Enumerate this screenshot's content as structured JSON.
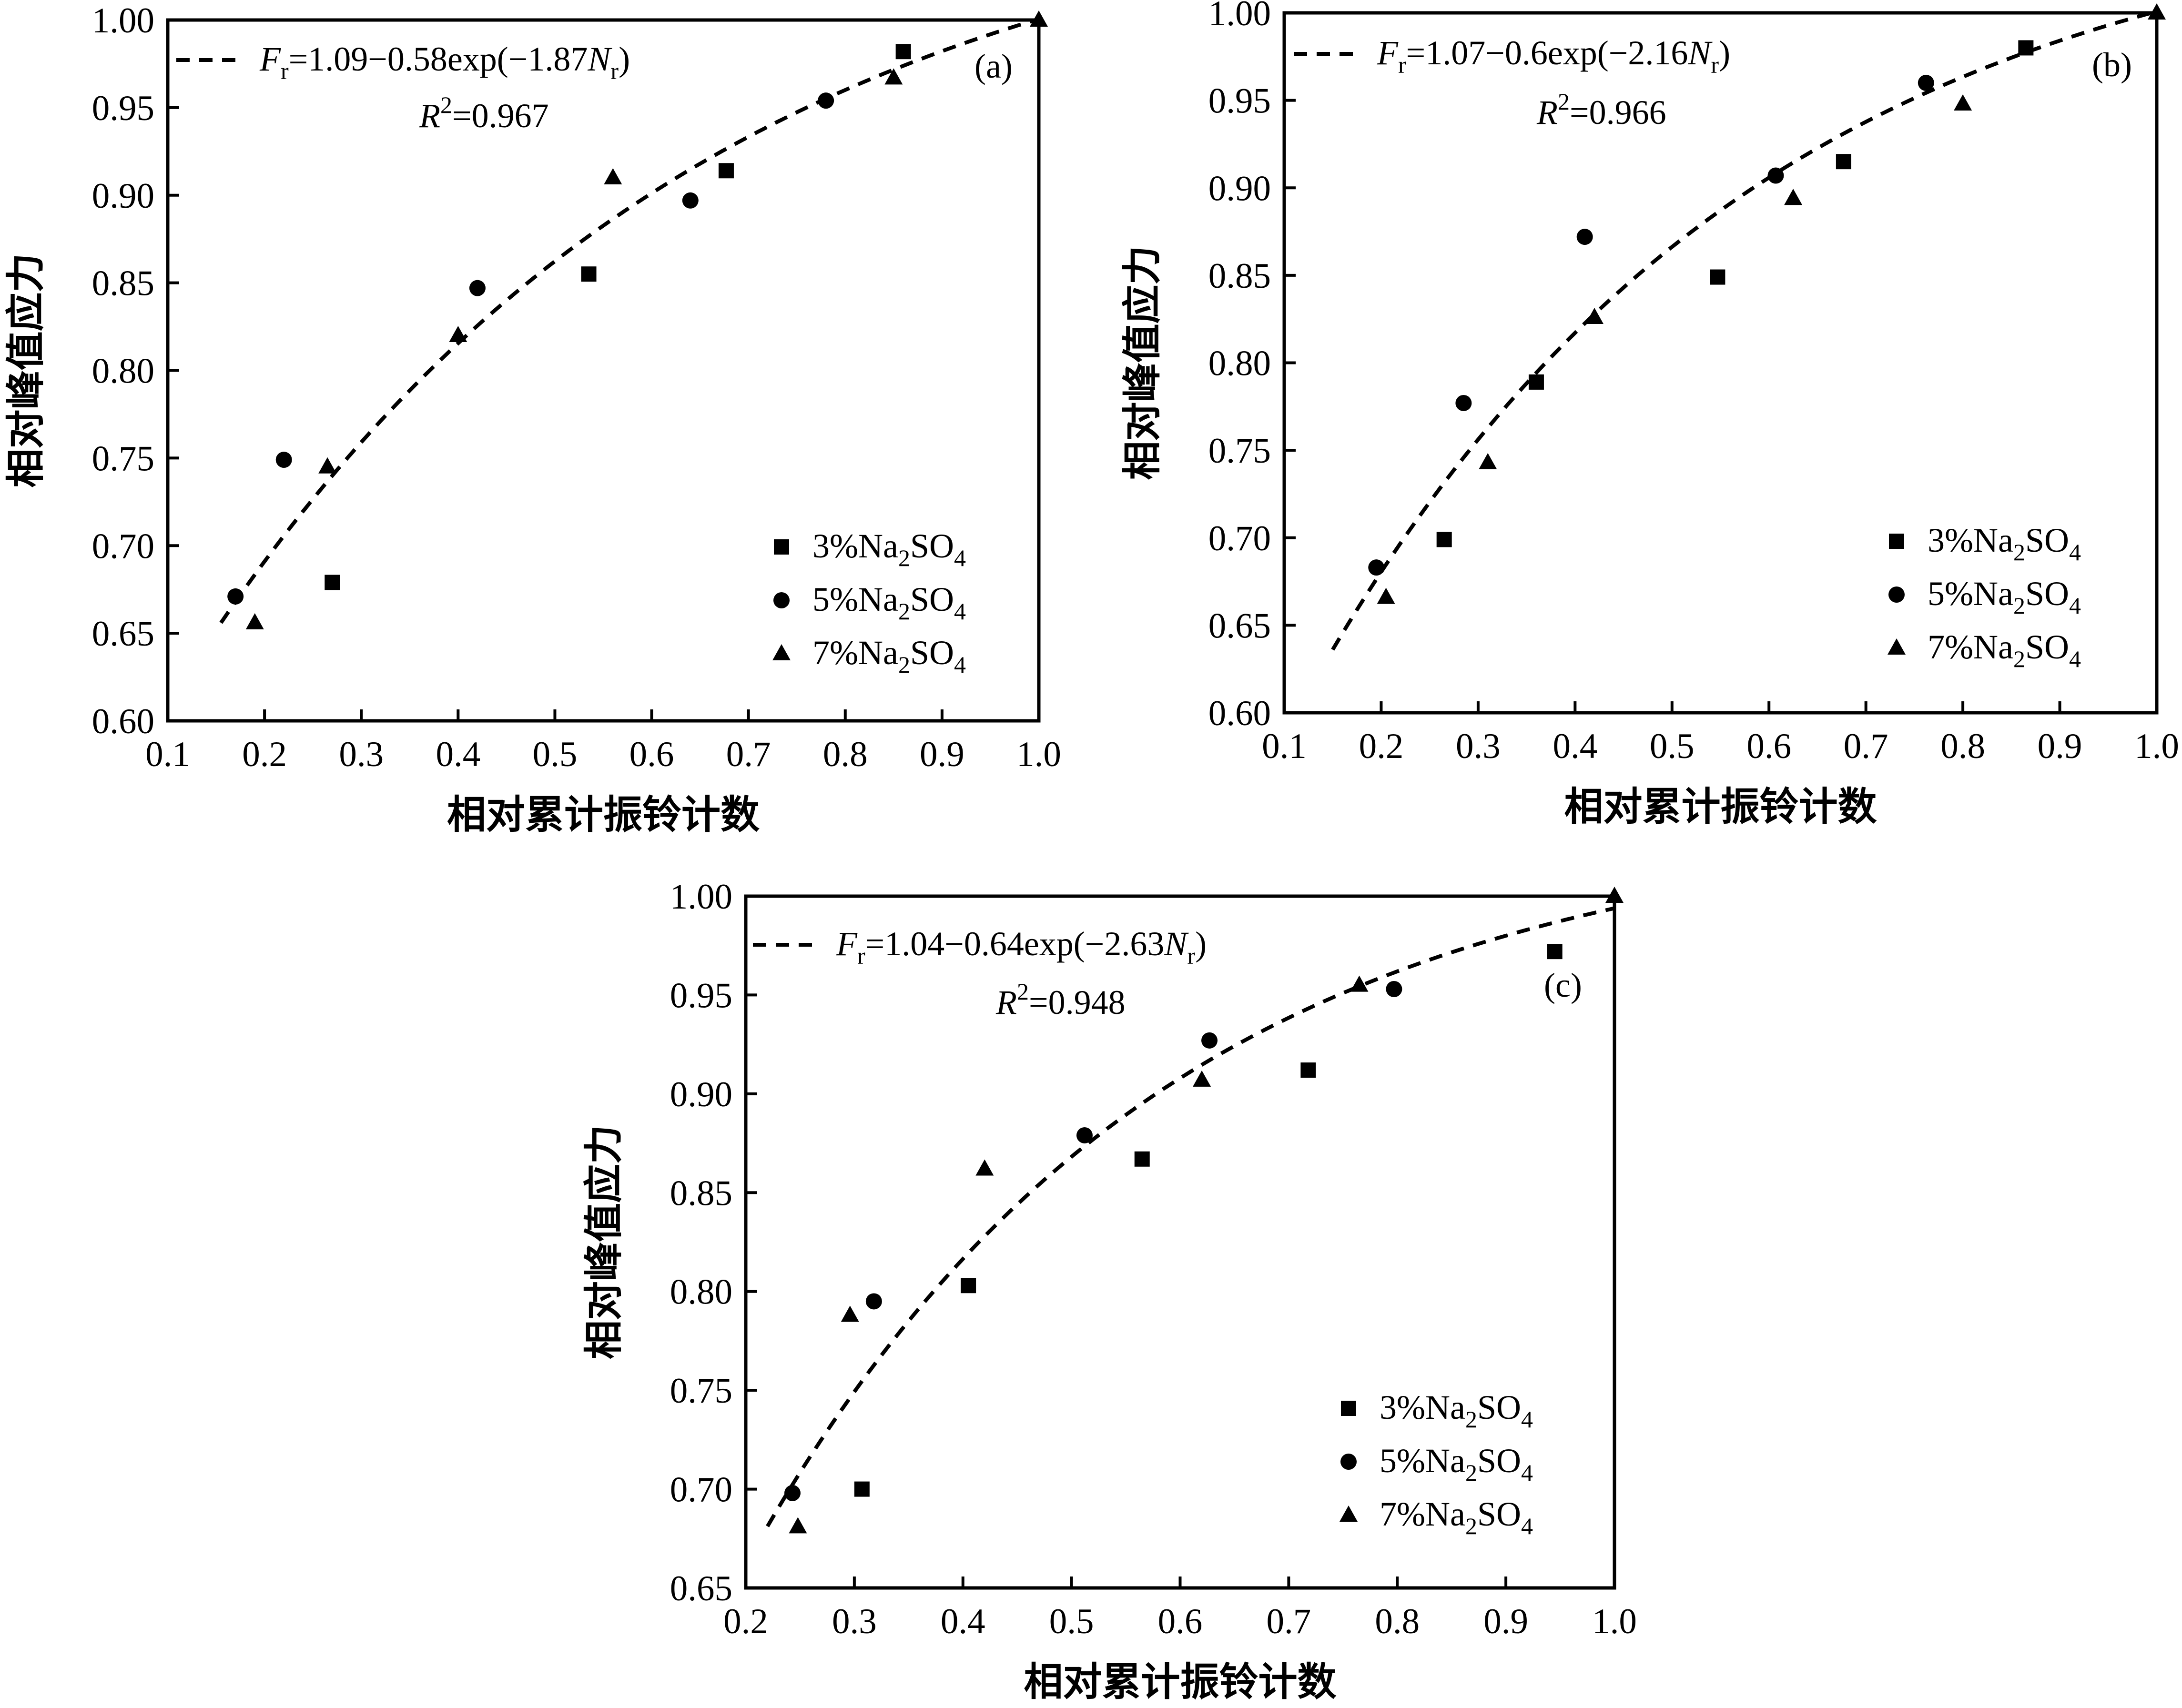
{
  "chart_data": [
    {
      "type": "scatter",
      "panel_label": "(a)",
      "xlabel": "相对累计振铃计数",
      "ylabel": "相对峰值应力",
      "xlim": [
        0.1,
        1.0
      ],
      "ylim": [
        0.6,
        1.0
      ],
      "xticks": [
        "0.1",
        "0.2",
        "0.3",
        "0.4",
        "0.5",
        "0.6",
        "0.7",
        "0.8",
        "0.9",
        "1.0"
      ],
      "yticks": [
        "0.60",
        "0.65",
        "0.70",
        "0.75",
        "0.80",
        "0.85",
        "0.90",
        "0.95",
        "1.00"
      ],
      "fit": {
        "a": 1.09,
        "b": 0.58,
        "c": 1.87,
        "x_range": [
          0.155,
          1.0
        ]
      },
      "equation": {
        "F": "F",
        "r1": "r",
        "body": "=1.09−0.58exp(−1.87",
        "N": "N",
        "r2": "r",
        "close": ")"
      },
      "r2": {
        "R": "R",
        "sup": "2",
        "value": "=0.967"
      },
      "series": [
        {
          "name": "3%Na2SO4",
          "marker": "square",
          "points": [
            [
              0.27,
              0.679
            ],
            [
              0.535,
              0.855
            ],
            [
              0.677,
              0.914
            ],
            [
              0.86,
              0.982
            ]
          ]
        },
        {
          "name": "5%Na2SO4",
          "marker": "circle",
          "points": [
            [
              0.17,
              0.671
            ],
            [
              0.22,
              0.749
            ],
            [
              0.42,
              0.847
            ],
            [
              0.64,
              0.897
            ],
            [
              0.78,
              0.954
            ]
          ]
        },
        {
          "name": "7%Na2SO4",
          "marker": "triangle",
          "points": [
            [
              0.19,
              0.656
            ],
            [
              0.265,
              0.745
            ],
            [
              0.4,
              0.82
            ],
            [
              0.56,
              0.91
            ],
            [
              0.85,
              0.967
            ],
            [
              1.0,
              1.0
            ]
          ]
        }
      ]
    },
    {
      "type": "scatter",
      "panel_label": "(b)",
      "xlabel": "相对累计振铃计数",
      "ylabel": "相对峰值应力",
      "xlim": [
        0.1,
        1.0
      ],
      "ylim": [
        0.6,
        1.0
      ],
      "xticks": [
        "0.1",
        "0.2",
        "0.3",
        "0.4",
        "0.5",
        "0.6",
        "0.7",
        "0.8",
        "0.9",
        "1.0"
      ],
      "yticks": [
        "0.60",
        "0.65",
        "0.70",
        "0.75",
        "0.80",
        "0.85",
        "0.90",
        "0.95",
        "1.00"
      ],
      "fit": {
        "a": 1.07,
        "b": 0.6,
        "c": 2.16,
        "x_range": [
          0.15,
          1.0
        ]
      },
      "equation": {
        "F": "F",
        "r1": "r",
        "body": "=1.07−0.6exp(−2.16",
        "N": "N",
        "r2": "r",
        "close": ")"
      },
      "r2": {
        "R": "R",
        "sup": "2",
        "value": "=0.966"
      },
      "series": [
        {
          "name": "3%Na2SO4",
          "marker": "square",
          "points": [
            [
              0.265,
              0.699
            ],
            [
              0.36,
              0.789
            ],
            [
              0.547,
              0.849
            ],
            [
              0.677,
              0.915
            ],
            [
              0.865,
              0.98
            ]
          ]
        },
        {
          "name": "5%Na2SO4",
          "marker": "circle",
          "points": [
            [
              0.195,
              0.683
            ],
            [
              0.285,
              0.777
            ],
            [
              0.41,
              0.872
            ],
            [
              0.607,
              0.907
            ],
            [
              0.762,
              0.96
            ]
          ]
        },
        {
          "name": "7%Na2SO4",
          "marker": "triangle",
          "points": [
            [
              0.205,
              0.666
            ],
            [
              0.31,
              0.743
            ],
            [
              0.42,
              0.826
            ],
            [
              0.625,
              0.894
            ],
            [
              0.8,
              0.948
            ],
            [
              1.0,
              1.0
            ]
          ]
        }
      ]
    },
    {
      "type": "scatter",
      "panel_label": "(c)",
      "xlabel": "相对累计振铃计数",
      "ylabel": "相对峰值应力",
      "xlim": [
        0.2,
        1.0
      ],
      "ylim": [
        0.65,
        1.0
      ],
      "xticks": [
        "0.2",
        "0.3",
        "0.4",
        "0.5",
        "0.6",
        "0.7",
        "0.8",
        "0.9",
        "1.0"
      ],
      "yticks": [
        "0.65",
        "0.70",
        "0.75",
        "0.80",
        "0.85",
        "0.90",
        "0.95",
        "1.00"
      ],
      "fit": {
        "a": 1.04,
        "b": 0.64,
        "c": 2.63,
        "x_range": [
          0.22,
          1.0
        ]
      },
      "equation": {
        "F": "F",
        "r1": "r",
        "body": "=1.04−0.64exp(−2.63",
        "N": "N",
        "r2": "r",
        "close": ")"
      },
      "r2": {
        "R": "R",
        "sup": "2",
        "value": "=0.948"
      },
      "series": [
        {
          "name": "3%Na2SO4",
          "marker": "square",
          "points": [
            [
              0.307,
              0.7
            ],
            [
              0.405,
              0.803
            ],
            [
              0.565,
              0.867
            ],
            [
              0.718,
              0.912
            ],
            [
              0.945,
              0.972
            ]
          ]
        },
        {
          "name": "5%Na2SO4",
          "marker": "circle",
          "points": [
            [
              0.243,
              0.698
            ],
            [
              0.318,
              0.795
            ],
            [
              0.512,
              0.879
            ],
            [
              0.627,
              0.927
            ],
            [
              0.797,
              0.953
            ]
          ]
        },
        {
          "name": "7%Na2SO4",
          "marker": "triangle",
          "points": [
            [
              0.248,
              0.681
            ],
            [
              0.296,
              0.788
            ],
            [
              0.42,
              0.862
            ],
            [
              0.62,
              0.907
            ],
            [
              0.765,
              0.955
            ],
            [
              1.0,
              1.0
            ]
          ]
        }
      ]
    }
  ],
  "legend": [
    {
      "prefix": "3%Na",
      "sub1": "2",
      "mid": "SO",
      "sub2": "4"
    },
    {
      "prefix": "5%Na",
      "sub1": "2",
      "mid": "SO",
      "sub2": "4"
    },
    {
      "prefix": "7%Na",
      "sub1": "2",
      "mid": "SO",
      "sub2": "4"
    }
  ]
}
